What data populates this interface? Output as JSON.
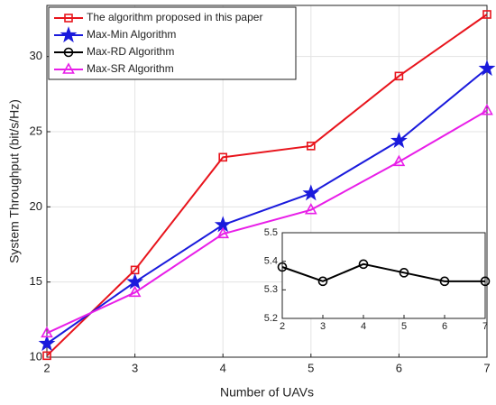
{
  "chart_data": [
    {
      "type": "line",
      "x_label": "Number of UAVs",
      "y_label": "System Throughput (bit/s/Hz)",
      "x": [
        2,
        3,
        4,
        5,
        6,
        7
      ],
      "xlim": [
        2,
        7
      ],
      "xticks": [
        2,
        3,
        4,
        5,
        6,
        7
      ],
      "ylim": [
        10,
        33.4
      ],
      "yticks": [
        10,
        15,
        20,
        25,
        30
      ],
      "grid": true,
      "legend": "upper left",
      "series": [
        {
          "name": "The algorithm proposed in this paper",
          "color": "#e8141c",
          "marker": "square",
          "values": [
            10.1,
            15.8,
            23.3,
            24.05,
            28.7,
            32.8
          ]
        },
        {
          "name": "Max-Min Algorithm",
          "color": "#1a1adc",
          "marker": "star",
          "values": [
            10.9,
            15.0,
            18.8,
            20.9,
            24.4,
            29.2
          ]
        },
        {
          "name": "Max-SR Algorithm",
          "color": "#e81ee8",
          "marker": "triangle",
          "values": [
            11.6,
            14.3,
            18.2,
            19.8,
            23.0,
            26.4
          ]
        }
      ]
    },
    {
      "type": "line",
      "x": [
        2,
        3,
        4,
        5,
        6,
        7
      ],
      "xlim": [
        2,
        7
      ],
      "xticks": [
        2,
        3,
        4,
        5,
        6,
        7
      ],
      "ylim": [
        5.2,
        5.5
      ],
      "yticks": [
        5.2,
        5.3,
        5.4,
        5.5
      ],
      "grid": false,
      "series": [
        {
          "name": "Max-RD Algorithm",
          "color": "#000000",
          "marker": "circle",
          "values": [
            5.38,
            5.33,
            5.39,
            5.36,
            5.33,
            5.33
          ]
        }
      ]
    }
  ]
}
